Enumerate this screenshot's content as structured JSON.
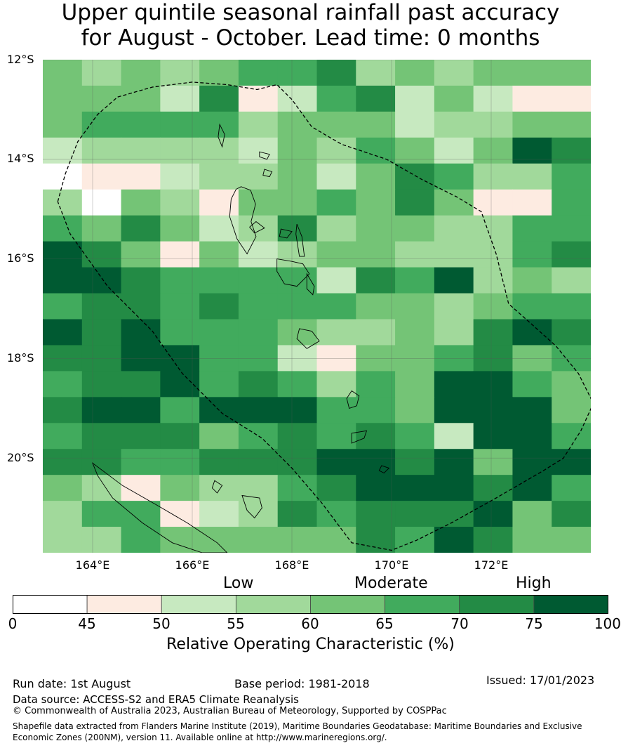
{
  "title": {
    "line1": "Upper quintile seasonal rainfall past accuracy",
    "line2": "for August - October. Lead time: 0 months"
  },
  "map": {
    "lon_range": [
      163.0,
      174.0
    ],
    "lat_range": [
      -21.9,
      -12.0
    ],
    "lat_ticks": [
      "12°S",
      "14°S",
      "16°S",
      "18°S",
      "20°S"
    ],
    "lon_ticks": [
      "164°E",
      "166°E",
      "168°E",
      "170°E",
      "172°E"
    ],
    "grid": true,
    "grid_values": [
      [
        65,
        60,
        65,
        60,
        65,
        70,
        70,
        75,
        60,
        65,
        60,
        65,
        65,
        65
      ],
      [
        65,
        65,
        65,
        55,
        75,
        50,
        55,
        70,
        75,
        55,
        65,
        55,
        50,
        50
      ],
      [
        65,
        70,
        70,
        70,
        70,
        60,
        65,
        65,
        65,
        55,
        60,
        60,
        65,
        65
      ],
      [
        55,
        60,
        60,
        60,
        60,
        55,
        65,
        60,
        70,
        65,
        55,
        65,
        100,
        75
      ],
      [
        45,
        50,
        50,
        55,
        60,
        60,
        65,
        55,
        65,
        75,
        70,
        60,
        60,
        70
      ],
      [
        60,
        45,
        65,
        60,
        50,
        65,
        65,
        70,
        65,
        75,
        65,
        50,
        50,
        70
      ],
      [
        70,
        65,
        75,
        65,
        55,
        60,
        75,
        60,
        65,
        65,
        60,
        60,
        70,
        70
      ],
      [
        100,
        75,
        65,
        50,
        65,
        55,
        60,
        65,
        65,
        60,
        60,
        60,
        70,
        75
      ],
      [
        100,
        100,
        75,
        70,
        70,
        70,
        70,
        55,
        75,
        70,
        100,
        60,
        65,
        60
      ],
      [
        70,
        75,
        75,
        70,
        75,
        70,
        70,
        70,
        65,
        65,
        60,
        65,
        70,
        70
      ],
      [
        100,
        75,
        100,
        70,
        70,
        70,
        65,
        60,
        60,
        65,
        60,
        75,
        100,
        75
      ],
      [
        75,
        75,
        100,
        100,
        70,
        70,
        55,
        50,
        65,
        65,
        70,
        75,
        65,
        70
      ],
      [
        70,
        75,
        75,
        100,
        70,
        75,
        70,
        60,
        70,
        65,
        100,
        100,
        70,
        65
      ],
      [
        75,
        100,
        100,
        70,
        100,
        100,
        100,
        70,
        70,
        65,
        100,
        100,
        100,
        65
      ],
      [
        70,
        75,
        75,
        75,
        65,
        70,
        75,
        70,
        75,
        70,
        55,
        100,
        100,
        70
      ],
      [
        75,
        75,
        70,
        70,
        75,
        75,
        75,
        100,
        100,
        75,
        100,
        65,
        100,
        100
      ],
      [
        65,
        60,
        50,
        65,
        60,
        60,
        70,
        75,
        100,
        100,
        100,
        75,
        100,
        70
      ],
      [
        60,
        70,
        70,
        50,
        55,
        60,
        75,
        70,
        75,
        75,
        75,
        100,
        65,
        75
      ],
      [
        60,
        60,
        70,
        65,
        65,
        65,
        65,
        65,
        75,
        70,
        100,
        75,
        65,
        65
      ]
    ],
    "eez_boundary": [
      [
        163.3,
        -14.85
      ],
      [
        163.45,
        -14.3
      ],
      [
        163.7,
        -13.65
      ],
      [
        164.1,
        -13.1
      ],
      [
        164.5,
        -12.75
      ],
      [
        165.2,
        -12.55
      ],
      [
        166.0,
        -12.45
      ],
      [
        166.7,
        -12.5
      ],
      [
        167.3,
        -12.6
      ],
      [
        167.7,
        -12.5
      ],
      [
        168.0,
        -12.8
      ],
      [
        168.4,
        -13.35
      ],
      [
        169.0,
        -13.7
      ],
      [
        169.9,
        -14.0
      ],
      [
        170.6,
        -14.4
      ],
      [
        171.3,
        -14.75
      ],
      [
        171.8,
        -15.05
      ],
      [
        172.1,
        -15.9
      ],
      [
        172.35,
        -16.9
      ],
      [
        172.8,
        -17.3
      ],
      [
        173.3,
        -17.75
      ],
      [
        173.75,
        -18.3
      ],
      [
        174.05,
        -18.9
      ],
      [
        173.8,
        -19.45
      ],
      [
        173.45,
        -20.0
      ],
      [
        173.05,
        -20.25
      ],
      [
        172.1,
        -20.8
      ],
      [
        171.2,
        -21.3
      ],
      [
        170.5,
        -21.65
      ],
      [
        170.0,
        -21.85
      ],
      [
        169.2,
        -21.7
      ],
      [
        168.6,
        -20.9
      ],
      [
        168.0,
        -20.2
      ],
      [
        167.4,
        -19.6
      ],
      [
        166.6,
        -19.1
      ],
      [
        165.8,
        -18.3
      ],
      [
        165.2,
        -17.45
      ],
      [
        164.3,
        -16.55
      ],
      [
        163.55,
        -15.5
      ],
      [
        163.3,
        -14.85
      ]
    ],
    "islands": [
      [
        [
          166.98,
          -14.55
        ],
        [
          167.17,
          -14.62
        ],
        [
          167.27,
          -14.9
        ],
        [
          167.18,
          -15.25
        ],
        [
          167.28,
          -15.55
        ],
        [
          167.1,
          -15.9
        ],
        [
          166.9,
          -15.6
        ],
        [
          166.75,
          -15.15
        ],
        [
          166.78,
          -14.8
        ],
        [
          166.88,
          -14.6
        ]
      ],
      [
        [
          167.7,
          -16.0
        ],
        [
          168.0,
          -16.05
        ],
        [
          168.22,
          -16.1
        ],
        [
          168.35,
          -16.3
        ],
        [
          168.1,
          -16.55
        ],
        [
          167.85,
          -16.5
        ],
        [
          167.7,
          -16.25
        ]
      ],
      [
        [
          167.28,
          -15.25
        ],
        [
          167.45,
          -15.38
        ],
        [
          167.25,
          -15.48
        ],
        [
          167.15,
          -15.36
        ]
      ],
      [
        [
          168.1,
          -15.3
        ],
        [
          168.2,
          -15.55
        ],
        [
          168.25,
          -15.95
        ],
        [
          168.15,
          -15.95
        ],
        [
          168.08,
          -15.5
        ]
      ],
      [
        [
          167.78,
          -15.4
        ],
        [
          168.0,
          -15.45
        ],
        [
          167.9,
          -15.58
        ],
        [
          167.75,
          -15.55
        ]
      ],
      [
        [
          168.3,
          -16.3
        ],
        [
          168.45,
          -16.55
        ],
        [
          168.42,
          -16.72
        ],
        [
          168.3,
          -16.6
        ]
      ],
      [
        [
          168.15,
          -17.4
        ],
        [
          168.4,
          -17.45
        ],
        [
          168.55,
          -17.65
        ],
        [
          168.3,
          -17.8
        ],
        [
          168.1,
          -17.6
        ]
      ],
      [
        [
          169.2,
          -18.65
        ],
        [
          169.35,
          -18.75
        ],
        [
          169.3,
          -18.95
        ],
        [
          169.15,
          -19.0
        ],
        [
          169.1,
          -18.8
        ]
      ],
      [
        [
          169.2,
          -19.5
        ],
        [
          169.5,
          -19.45
        ],
        [
          169.45,
          -19.6
        ],
        [
          169.2,
          -19.7
        ]
      ],
      [
        [
          169.8,
          -20.15
        ],
        [
          169.95,
          -20.2
        ],
        [
          169.85,
          -20.3
        ],
        [
          169.75,
          -20.25
        ]
      ],
      [
        [
          167.0,
          -20.75
        ],
        [
          167.35,
          -20.8
        ],
        [
          167.4,
          -21.0
        ],
        [
          167.25,
          -21.2
        ],
        [
          167.1,
          -21.05
        ]
      ],
      [
        [
          166.45,
          -20.45
        ],
        [
          166.6,
          -20.55
        ],
        [
          166.5,
          -20.7
        ],
        [
          166.4,
          -20.6
        ]
      ],
      [
        [
          164.0,
          -20.1
        ],
        [
          164.6,
          -20.55
        ],
        [
          165.3,
          -20.95
        ],
        [
          165.9,
          -21.3
        ],
        [
          166.5,
          -21.7
        ],
        [
          166.7,
          -21.9
        ],
        [
          166.2,
          -21.9
        ],
        [
          165.6,
          -21.7
        ],
        [
          165.0,
          -21.3
        ],
        [
          164.4,
          -20.8
        ],
        [
          164.1,
          -20.35
        ]
      ],
      [
        [
          166.55,
          -13.3
        ],
        [
          166.65,
          -13.5
        ],
        [
          166.6,
          -13.75
        ],
        [
          166.52,
          -13.55
        ]
      ],
      [
        [
          167.35,
          -13.85
        ],
        [
          167.55,
          -13.9
        ],
        [
          167.5,
          -14.0
        ],
        [
          167.35,
          -13.95
        ]
      ],
      [
        [
          167.45,
          -14.2
        ],
        [
          167.6,
          -14.25
        ],
        [
          167.55,
          -14.35
        ],
        [
          167.42,
          -14.32
        ]
      ]
    ]
  },
  "categories": {
    "low": "Low",
    "moderate": "Moderate",
    "high": "High"
  },
  "colorbar": {
    "ticks": [
      "0",
      "45",
      "50",
      "55",
      "60",
      "65",
      "70",
      "75",
      "100"
    ],
    "colors": [
      "#ffffff",
      "#fdebe1",
      "#c7e9c0",
      "#a1d99b",
      "#74c476",
      "#41ab5d",
      "#238b45",
      "#005a32"
    ],
    "label": "Relative Operating Characteristic (%)"
  },
  "footer": {
    "run_date": "Run date: 1st August",
    "base_period": "Base period: 1981-2018",
    "issued": "Issued: 17/01/2023",
    "data_source": "Data source: ACCESS-S2 and ERA5 Climate Reanalysis",
    "copyright": "© Commonwealth of Australia 2023, Australian Bureau of Meteorology, Supported by COSPPac",
    "shapefile_line1": "Shapefile data extracted from Flanders Marine Institute (2019), Maritime Boundaries Geodatabase: Maritime Boundaries and Exclusive",
    "shapefile_line2": "Economic Zones (200NM), version 11. Available online at http://www.marineregions.org/."
  }
}
